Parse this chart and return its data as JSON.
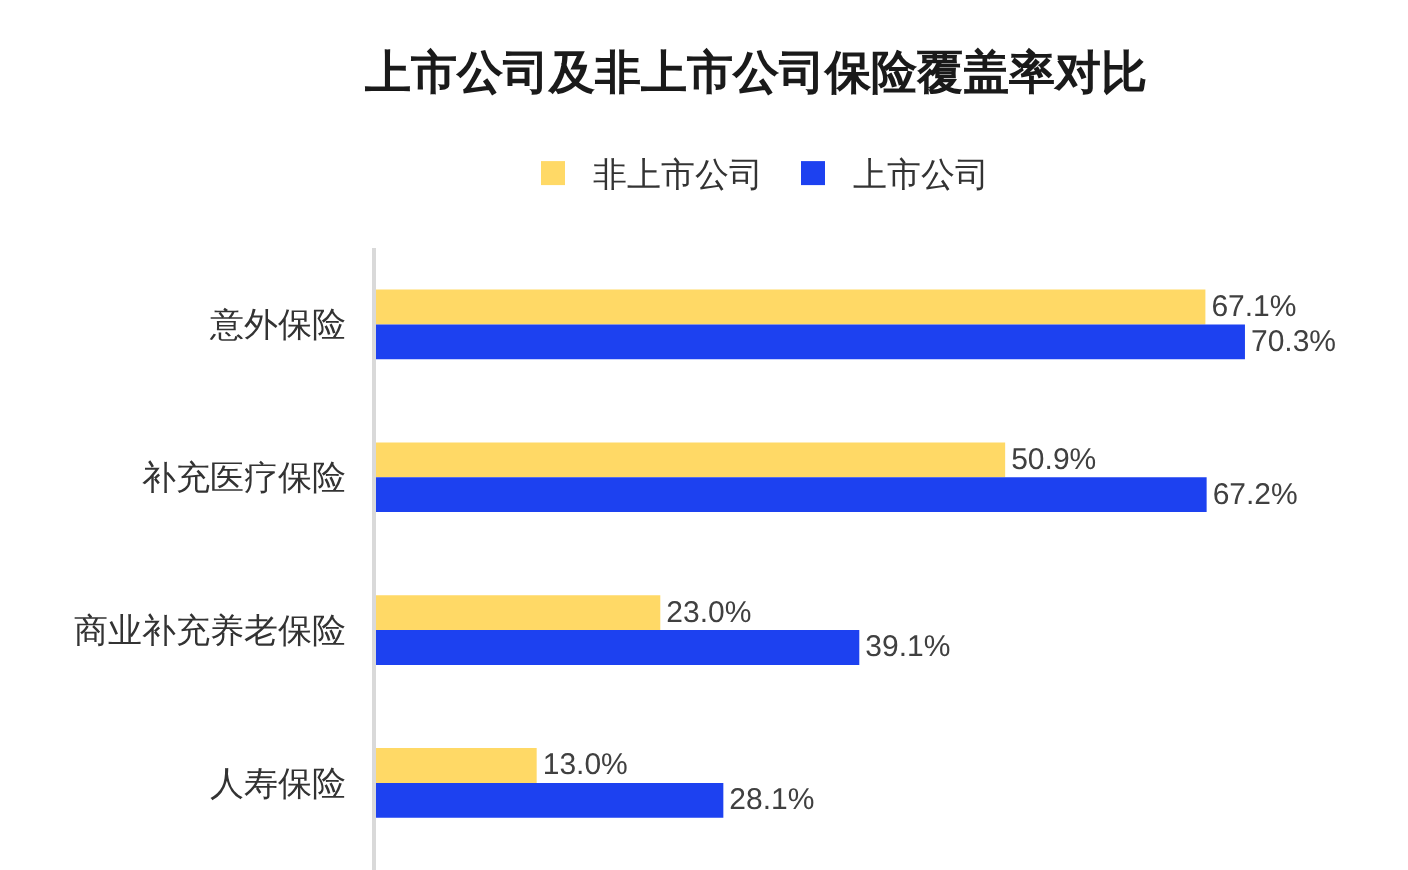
{
  "chart_data": {
    "type": "bar",
    "orientation": "horizontal",
    "title": "上市公司及非上市公司保险覆盖率对比",
    "categories": [
      "意外保险",
      "补充医疗保险",
      "商业补充养老保险",
      "人寿保险"
    ],
    "series": [
      {
        "name": "非上市公司",
        "color": "#ffd966",
        "values": [
          67.1,
          50.9,
          23.0,
          13.0
        ],
        "value_labels": [
          "67.1%",
          "50.9%",
          "23.0%",
          "13.0%"
        ]
      },
      {
        "name": "上市公司",
        "color": "#1d41f0",
        "values": [
          70.3,
          67.2,
          39.1,
          28.1
        ],
        "value_labels": [
          "70.3%",
          "67.2%",
          "39.1%",
          "28.1%"
        ]
      }
    ],
    "legend": "top",
    "tick_labels": "y"
  }
}
